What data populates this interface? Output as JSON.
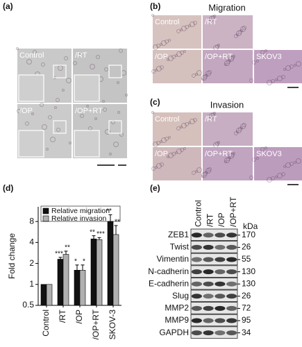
{
  "panels": {
    "a": {
      "label": "(a)",
      "images": [
        "Control",
        "/RT",
        "/OP",
        "/OP+RT"
      ]
    },
    "b": {
      "label": "(b)",
      "title": "Migration",
      "images": [
        "Control",
        "/RT",
        "/OP",
        "/OP+RT",
        "SKOV3"
      ]
    },
    "c": {
      "label": "(c)",
      "title": "Invasion",
      "images": [
        "Control",
        "/RT",
        "/OP",
        "/OP+RT",
        "SKOV3"
      ]
    },
    "d": {
      "label": "(d)"
    },
    "e": {
      "label": "(e)",
      "lanes": [
        "Control",
        "/RT",
        "/OP",
        "/OP+RT"
      ],
      "unit": "kDa",
      "rows": [
        {
          "name": "ZEB1",
          "kda": 170
        },
        {
          "name": "Twist",
          "kda": 26
        },
        {
          "name": "Vimentin",
          "kda": 55
        },
        {
          "name": "N-cadherin",
          "kda": 130
        },
        {
          "name": "E-cadherin",
          "kda": 130
        },
        {
          "name": "Slug",
          "kda": 26
        },
        {
          "name": "MMP2",
          "kda": 72
        },
        {
          "name": "MMP9",
          "kda": 95
        },
        {
          "name": "GAPDH",
          "kda": 34
        }
      ]
    }
  },
  "chart_data": {
    "type": "bar",
    "ylabel": "Fold change",
    "log": true,
    "categories": [
      "Control",
      "/RT",
      "/OP",
      "/OP+RT",
      "SKOV-3"
    ],
    "series": [
      {
        "name": "Relative migration",
        "color": "#111111",
        "values": [
          1,
          2.3,
          1.6,
          4.5,
          8
        ],
        "errors": [
          0,
          0.15,
          0.3,
          0.5,
          2
        ],
        "annotations": [
          null,
          "***",
          "*",
          "**",
          "**"
        ]
      },
      {
        "name": "Relative invasion",
        "color": "#b0b0b0",
        "values": [
          1,
          2.7,
          1.6,
          4.4,
          5.2
        ],
        "errors": [
          0,
          0.3,
          0.3,
          0.3,
          1.8
        ],
        "annotations": [
          null,
          "**",
          "*",
          "***",
          "**"
        ]
      }
    ],
    "ylim": [
      0.5,
      13
    ],
    "yticks": [
      0.5,
      1,
      2,
      4,
      8
    ]
  }
}
